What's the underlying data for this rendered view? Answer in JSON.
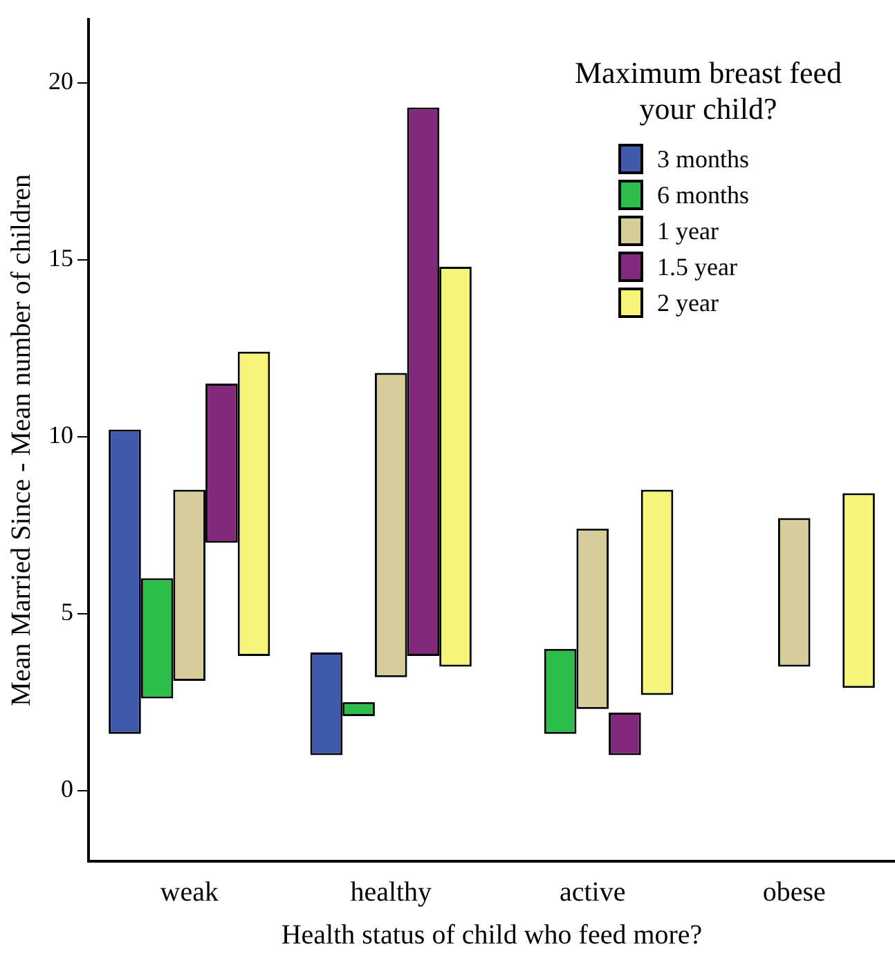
{
  "chart_data": {
    "type": "bar",
    "xlabel": "Health status of child who feed more?",
    "ylabel": "Mean Married Since - Mean number of children",
    "legend_title": "Maximum breast feed your child?",
    "legend": "top right",
    "categories": [
      "weak",
      "healthy",
      "active",
      "obese"
    ],
    "ylim": [
      -2,
      21.8
    ],
    "yticks": [
      0,
      5,
      10,
      15,
      20
    ],
    "series": [
      {
        "name": "3 months",
        "color": "#3f5aaa",
        "base": [
          1.6,
          1.0,
          null,
          null
        ],
        "values": [
          8.6,
          2.9,
          null,
          null
        ]
      },
      {
        "name": "6 months",
        "color": "#2dbd4a",
        "base": [
          2.6,
          2.1,
          1.6,
          null
        ],
        "values": [
          3.4,
          0.4,
          2.4,
          null
        ]
      },
      {
        "name": "1 year",
        "color": "#d6cd9b",
        "base": [
          3.1,
          3.2,
          2.3,
          3.5
        ],
        "values": [
          5.4,
          8.6,
          5.1,
          4.2
        ]
      },
      {
        "name": "1.5 year",
        "color": "#82297d",
        "base": [
          7.0,
          3.8,
          1.0,
          null
        ],
        "values": [
          4.5,
          15.5,
          1.2,
          null
        ]
      },
      {
        "name": "2 year",
        "color": "#f6f57a",
        "base": [
          3.8,
          3.5,
          2.7,
          2.9
        ],
        "values": [
          8.6,
          11.3,
          5.8,
          5.5
        ]
      }
    ]
  }
}
